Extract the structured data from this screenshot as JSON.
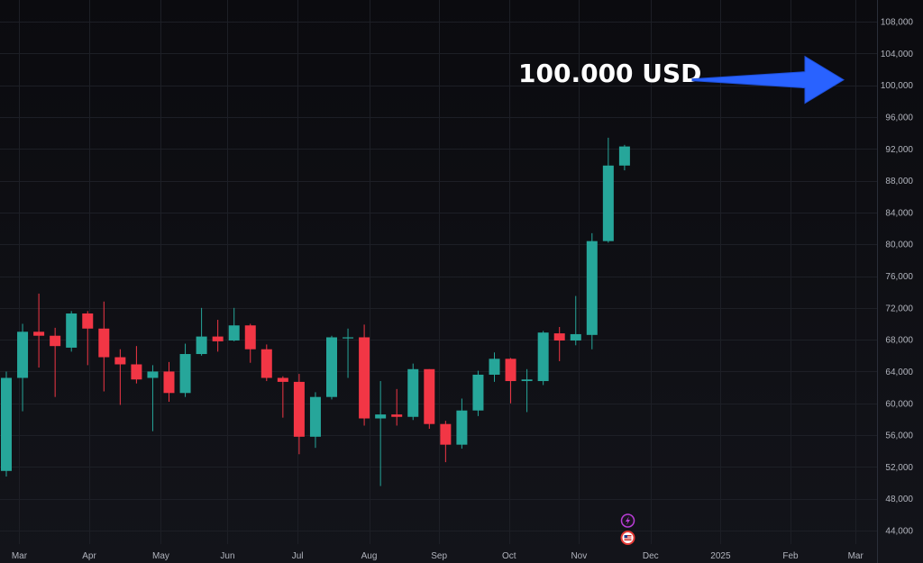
{
  "chart_data": {
    "type": "candlestick",
    "title": "",
    "xlabel": "",
    "ylabel": "",
    "ylim": [
      42000,
      110000
    ],
    "y_ticks": [
      44000,
      48000,
      52000,
      56000,
      60000,
      64000,
      68000,
      72000,
      76000,
      80000,
      84000,
      88000,
      92000,
      96000,
      100000,
      104000,
      108000
    ],
    "y_tick_labels": [
      "44,000",
      "48,000",
      "52,000",
      "56,000",
      "60,000",
      "64,000",
      "68,000",
      "72,000",
      "76,000",
      "80,000",
      "84,000",
      "88,000",
      "92,000",
      "96,000",
      "100,000",
      "104,000",
      "108,000"
    ],
    "y_axis_side": "right",
    "x_ticks": [
      {
        "label": "Mar",
        "week": 0.8
      },
      {
        "label": "Apr",
        "week": 5.1
      },
      {
        "label": "May",
        "week": 9.5
      },
      {
        "label": "Jun",
        "week": 13.6
      },
      {
        "label": "Jul",
        "week": 17.9
      },
      {
        "label": "Aug",
        "week": 22.3
      },
      {
        "label": "Sep",
        "week": 26.6
      },
      {
        "label": "Oct",
        "week": 30.9
      },
      {
        "label": "Nov",
        "week": 35.2
      },
      {
        "label": "Dec",
        "week": 39.6
      },
      {
        "label": "2025",
        "week": 43.9
      },
      {
        "label": "Feb",
        "week": 48.2
      },
      {
        "label": "Mar",
        "week": 52.2
      }
    ],
    "x_range": [
      0,
      54
    ],
    "grid": true,
    "candles": [
      {
        "week": 0,
        "open": 51500,
        "high": 64000,
        "low": 50800,
        "close": 63200
      },
      {
        "week": 1,
        "open": 63200,
        "high": 70000,
        "low": 59000,
        "close": 69000
      },
      {
        "week": 2,
        "open": 69000,
        "high": 73800,
        "low": 64500,
        "close": 68500
      },
      {
        "week": 3,
        "open": 68500,
        "high": 69500,
        "low": 60800,
        "close": 67200
      },
      {
        "week": 4,
        "open": 67000,
        "high": 71600,
        "low": 66500,
        "close": 71300
      },
      {
        "week": 5,
        "open": 71300,
        "high": 71600,
        "low": 64800,
        "close": 69400
      },
      {
        "week": 6,
        "open": 69400,
        "high": 72800,
        "low": 61500,
        "close": 65800
      },
      {
        "week": 7,
        "open": 65800,
        "high": 66800,
        "low": 59800,
        "close": 64900
      },
      {
        "week": 8,
        "open": 64900,
        "high": 67200,
        "low": 62500,
        "close": 63000
      },
      {
        "week": 9,
        "open": 63200,
        "high": 64800,
        "low": 56500,
        "close": 64000
      },
      {
        "week": 10,
        "open": 64000,
        "high": 65200,
        "low": 60200,
        "close": 61300
      },
      {
        "week": 11,
        "open": 61300,
        "high": 67500,
        "low": 60800,
        "close": 66200
      },
      {
        "week": 12,
        "open": 66200,
        "high": 72000,
        "low": 66000,
        "close": 68400
      },
      {
        "week": 13,
        "open": 68400,
        "high": 70500,
        "low": 66500,
        "close": 67800
      },
      {
        "week": 14,
        "open": 67900,
        "high": 72000,
        "low": 67800,
        "close": 69800
      },
      {
        "week": 15,
        "open": 69800,
        "high": 70000,
        "low": 65100,
        "close": 66800
      },
      {
        "week": 16,
        "open": 66800,
        "high": 67400,
        "low": 62800,
        "close": 63200
      },
      {
        "week": 17,
        "open": 63200,
        "high": 63400,
        "low": 58200,
        "close": 62700
      },
      {
        "week": 18,
        "open": 62700,
        "high": 63700,
        "low": 53600,
        "close": 55800
      },
      {
        "week": 19,
        "open": 55800,
        "high": 61400,
        "low": 54400,
        "close": 60800
      },
      {
        "week": 20,
        "open": 60800,
        "high": 68500,
        "low": 60500,
        "close": 68300
      },
      {
        "week": 21,
        "open": 68200,
        "high": 69400,
        "low": 63200,
        "close": 68300
      },
      {
        "week": 22,
        "open": 68300,
        "high": 69900,
        "low": 57200,
        "close": 58100
      },
      {
        "week": 23,
        "open": 58100,
        "high": 62800,
        "low": 49600,
        "close": 58600
      },
      {
        "week": 24,
        "open": 58600,
        "high": 61800,
        "low": 57200,
        "close": 58300
      },
      {
        "week": 25,
        "open": 58300,
        "high": 65000,
        "low": 57900,
        "close": 64300
      },
      {
        "week": 26,
        "open": 64300,
        "high": 64300,
        "low": 56800,
        "close": 57400
      },
      {
        "week": 27,
        "open": 57400,
        "high": 57800,
        "low": 52600,
        "close": 54800
      },
      {
        "week": 28,
        "open": 54800,
        "high": 60600,
        "low": 54300,
        "close": 59100
      },
      {
        "week": 29,
        "open": 59100,
        "high": 64100,
        "low": 58400,
        "close": 63600
      },
      {
        "week": 30,
        "open": 63600,
        "high": 66400,
        "low": 62700,
        "close": 65600
      },
      {
        "week": 31,
        "open": 65600,
        "high": 65700,
        "low": 60000,
        "close": 62800
      },
      {
        "week": 32,
        "open": 62800,
        "high": 64300,
        "low": 58900,
        "close": 63000
      },
      {
        "week": 33,
        "open": 62800,
        "high": 69100,
        "low": 62300,
        "close": 68900
      },
      {
        "week": 34,
        "open": 68800,
        "high": 69600,
        "low": 65300,
        "close": 67900
      },
      {
        "week": 35,
        "open": 67900,
        "high": 73500,
        "low": 67300,
        "close": 68700
      },
      {
        "week": 36,
        "open": 68600,
        "high": 81400,
        "low": 66800,
        "close": 80400
      },
      {
        "week": 37,
        "open": 80400,
        "high": 93400,
        "low": 80200,
        "close": 89900
      },
      {
        "week": 38,
        "open": 89900,
        "high": 92500,
        "low": 89300,
        "close": 92300
      }
    ],
    "annotations": [
      {
        "text": "100.000 USD",
        "type": "arrow",
        "color": "#2962ff"
      }
    ],
    "event_badges": [
      {
        "icon": "lightning-icon",
        "color": "#b83dd6",
        "week": 38.2
      },
      {
        "icon": "us-flag-icon",
        "color": "#e53935",
        "week": 38.2
      }
    ],
    "colors": {
      "up": "#26a69a",
      "down": "#f23645",
      "grid": "#1d1f26",
      "axis_text": "#b2b5be",
      "background": "#0f0f14",
      "arrow": "#2962ff"
    }
  }
}
